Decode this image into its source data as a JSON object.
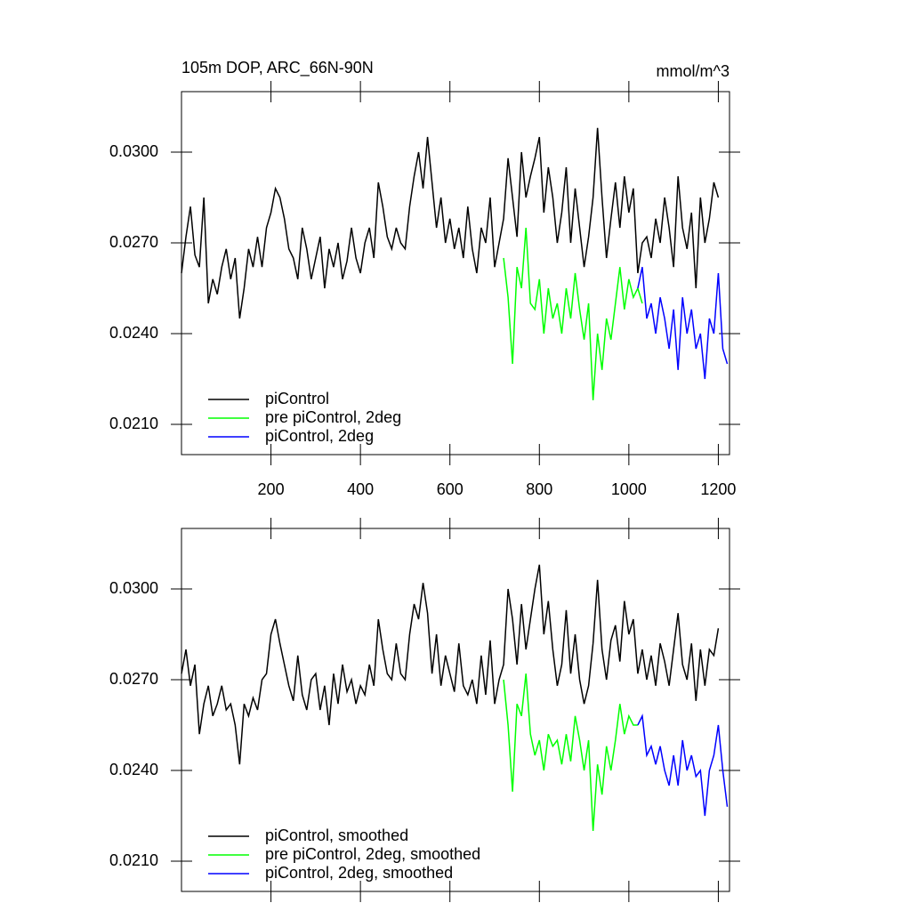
{
  "chart_data": [
    {
      "type": "line",
      "title": "105m DOP, ARC_66N-90N",
      "units": "mmol/m^3",
      "xlim": [
        0,
        1225
      ],
      "xticks": [
        200,
        400,
        600,
        800,
        1000,
        1200
      ],
      "ylim": [
        0.02,
        0.032
      ],
      "yticks": [
        {
          "value": 0.021,
          "label": "0.0210"
        },
        {
          "value": 0.024,
          "label": "0.0240"
        },
        {
          "value": 0.027,
          "label": "0.0270"
        },
        {
          "value": 0.03,
          "label": "0.0300"
        }
      ],
      "legend": "lower left",
      "series": [
        {
          "name": "piControl",
          "color": "#000000",
          "x": [
            0,
            10,
            20,
            30,
            40,
            50,
            60,
            70,
            80,
            90,
            100,
            110,
            120,
            130,
            140,
            150,
            160,
            170,
            180,
            190,
            200,
            210,
            220,
            230,
            240,
            250,
            260,
            270,
            280,
            290,
            300,
            310,
            320,
            330,
            340,
            350,
            360,
            370,
            380,
            390,
            400,
            410,
            420,
            430,
            440,
            450,
            460,
            470,
            480,
            490,
            500,
            510,
            520,
            530,
            540,
            550,
            560,
            570,
            580,
            590,
            600,
            610,
            620,
            630,
            640,
            650,
            660,
            670,
            680,
            690,
            700,
            710,
            720,
            730,
            740,
            750,
            760,
            770,
            780,
            790,
            800,
            810,
            820,
            830,
            840,
            850,
            860,
            870,
            880,
            890,
            900,
            910,
            920,
            930,
            940,
            950,
            960,
            970,
            980,
            990,
            1000,
            1010,
            1020,
            1030,
            1040,
            1050,
            1060,
            1070,
            1080,
            1090,
            1100,
            1110,
            1120,
            1130,
            1140,
            1150,
            1160,
            1170,
            1180,
            1190,
            1200
          ],
          "values": [
            0.026,
            0.0272,
            0.0282,
            0.0266,
            0.0262,
            0.0285,
            0.025,
            0.0258,
            0.0253,
            0.0262,
            0.0268,
            0.0258,
            0.0265,
            0.0245,
            0.0255,
            0.0268,
            0.0262,
            0.0272,
            0.0262,
            0.0275,
            0.028,
            0.0288,
            0.0285,
            0.0278,
            0.0268,
            0.0265,
            0.0258,
            0.0275,
            0.0268,
            0.0258,
            0.0265,
            0.0272,
            0.0255,
            0.0268,
            0.0262,
            0.027,
            0.0258,
            0.0264,
            0.0275,
            0.0265,
            0.026,
            0.027,
            0.0275,
            0.0265,
            0.029,
            0.0282,
            0.0272,
            0.0268,
            0.0275,
            0.027,
            0.0268,
            0.0282,
            0.0292,
            0.03,
            0.0288,
            0.0305,
            0.029,
            0.0275,
            0.0285,
            0.027,
            0.0278,
            0.0268,
            0.0275,
            0.0265,
            0.0282,
            0.0268,
            0.026,
            0.0275,
            0.027,
            0.0285,
            0.0262,
            0.027,
            0.0278,
            0.0298,
            0.0285,
            0.0272,
            0.03,
            0.0285,
            0.0292,
            0.0298,
            0.0305,
            0.028,
            0.0295,
            0.0285,
            0.027,
            0.028,
            0.0295,
            0.027,
            0.0288,
            0.0275,
            0.0262,
            0.0272,
            0.0285,
            0.0308,
            0.0285,
            0.0265,
            0.0278,
            0.029,
            0.0275,
            0.0292,
            0.028,
            0.0288,
            0.026,
            0.027,
            0.0272,
            0.0265,
            0.0278,
            0.027,
            0.0285,
            0.0275,
            0.0262,
            0.0292,
            0.0275,
            0.0268,
            0.028,
            0.0255,
            0.0285,
            0.027,
            0.0278,
            0.029,
            0.0285
          ]
        },
        {
          "name": "pre piControl, 2deg",
          "color": "#00ff00",
          "x": [
            720,
            730,
            740,
            750,
            760,
            770,
            780,
            790,
            800,
            810,
            820,
            830,
            840,
            850,
            860,
            870,
            880,
            890,
            900,
            910,
            920,
            930,
            940,
            950,
            960,
            970,
            980,
            990,
            1000,
            1010,
            1020,
            1030
          ],
          "values": [
            0.0265,
            0.0252,
            0.023,
            0.0262,
            0.0255,
            0.0275,
            0.025,
            0.0248,
            0.0258,
            0.024,
            0.0255,
            0.0245,
            0.025,
            0.024,
            0.0255,
            0.0245,
            0.026,
            0.0248,
            0.0238,
            0.025,
            0.0218,
            0.024,
            0.0228,
            0.0245,
            0.0238,
            0.025,
            0.0262,
            0.0248,
            0.0258,
            0.0252,
            0.0255,
            0.025
          ]
        },
        {
          "name": "piControl, 2deg",
          "color": "#0000ff",
          "x": [
            1020,
            1030,
            1040,
            1050,
            1060,
            1070,
            1080,
            1090,
            1100,
            1110,
            1120,
            1130,
            1140,
            1150,
            1160,
            1170,
            1180,
            1190,
            1200,
            1210,
            1220
          ],
          "values": [
            0.0255,
            0.0262,
            0.0245,
            0.025,
            0.024,
            0.0252,
            0.0245,
            0.0235,
            0.0248,
            0.0228,
            0.0252,
            0.024,
            0.0248,
            0.0235,
            0.024,
            0.0225,
            0.0245,
            0.024,
            0.026,
            0.0235,
            0.023
          ]
        }
      ]
    },
    {
      "type": "line",
      "xlim": [
        0,
        1225
      ],
      "xticks": [
        200,
        400,
        600,
        800,
        1000,
        1200
      ],
      "ylim": [
        0.02,
        0.032
      ],
      "yticks": [
        {
          "value": 0.021,
          "label": "0.0210"
        },
        {
          "value": 0.024,
          "label": "0.0240"
        },
        {
          "value": 0.027,
          "label": "0.0270"
        },
        {
          "value": 0.03,
          "label": "0.0300"
        }
      ],
      "legend": "lower left",
      "series": [
        {
          "name": "piControl, smoothed",
          "color": "#000000",
          "x": [
            0,
            10,
            20,
            30,
            40,
            50,
            60,
            70,
            80,
            90,
            100,
            110,
            120,
            130,
            140,
            150,
            160,
            170,
            180,
            190,
            200,
            210,
            220,
            230,
            240,
            250,
            260,
            270,
            280,
            290,
            300,
            310,
            320,
            330,
            340,
            350,
            360,
            370,
            380,
            390,
            400,
            410,
            420,
            430,
            440,
            450,
            460,
            470,
            480,
            490,
            500,
            510,
            520,
            530,
            540,
            550,
            560,
            570,
            580,
            590,
            600,
            610,
            620,
            630,
            640,
            650,
            660,
            670,
            680,
            690,
            700,
            710,
            720,
            730,
            740,
            750,
            760,
            770,
            780,
            790,
            800,
            810,
            820,
            830,
            840,
            850,
            860,
            870,
            880,
            890,
            900,
            910,
            920,
            930,
            940,
            950,
            960,
            970,
            980,
            990,
            1000,
            1010,
            1020,
            1030,
            1040,
            1050,
            1060,
            1070,
            1080,
            1090,
            1100,
            1110,
            1120,
            1130,
            1140,
            1150,
            1160,
            1170,
            1180,
            1190,
            1200
          ],
          "values": [
            0.0272,
            0.028,
            0.0268,
            0.0275,
            0.0252,
            0.0262,
            0.0268,
            0.0258,
            0.0262,
            0.0268,
            0.026,
            0.0262,
            0.0255,
            0.0242,
            0.0262,
            0.0258,
            0.0264,
            0.026,
            0.027,
            0.0272,
            0.0285,
            0.029,
            0.0282,
            0.0275,
            0.0268,
            0.0263,
            0.0278,
            0.0265,
            0.026,
            0.027,
            0.0272,
            0.026,
            0.0268,
            0.0255,
            0.0272,
            0.0262,
            0.0275,
            0.0266,
            0.027,
            0.0262,
            0.0268,
            0.0265,
            0.0275,
            0.0268,
            0.029,
            0.028,
            0.0272,
            0.027,
            0.0282,
            0.0272,
            0.027,
            0.0285,
            0.0295,
            0.029,
            0.0302,
            0.0292,
            0.0272,
            0.0285,
            0.0268,
            0.0278,
            0.0272,
            0.0266,
            0.0282,
            0.0268,
            0.0265,
            0.027,
            0.0262,
            0.0278,
            0.0265,
            0.0283,
            0.0262,
            0.027,
            0.0275,
            0.03,
            0.029,
            0.0275,
            0.0295,
            0.028,
            0.029,
            0.03,
            0.0308,
            0.0285,
            0.0296,
            0.028,
            0.0268,
            0.0275,
            0.0293,
            0.0272,
            0.0285,
            0.027,
            0.0262,
            0.0268,
            0.0282,
            0.0303,
            0.028,
            0.027,
            0.0283,
            0.0288,
            0.0276,
            0.0296,
            0.0285,
            0.029,
            0.0272,
            0.028,
            0.027,
            0.0278,
            0.0268,
            0.0282,
            0.0276,
            0.0268,
            0.028,
            0.0292,
            0.0275,
            0.027,
            0.0282,
            0.0263,
            0.028,
            0.0268,
            0.028,
            0.0278,
            0.0287
          ]
        },
        {
          "name": "pre piControl, 2deg, smoothed",
          "color": "#00ff00",
          "x": [
            720,
            730,
            740,
            750,
            760,
            770,
            780,
            790,
            800,
            810,
            820,
            830,
            840,
            850,
            860,
            870,
            880,
            890,
            900,
            910,
            920,
            930,
            940,
            950,
            960,
            970,
            980,
            990,
            1000,
            1010,
            1020
          ],
          "values": [
            0.027,
            0.0255,
            0.0233,
            0.0262,
            0.0258,
            0.0272,
            0.0252,
            0.0245,
            0.025,
            0.024,
            0.0252,
            0.0248,
            0.025,
            0.0242,
            0.0252,
            0.0243,
            0.0258,
            0.025,
            0.024,
            0.025,
            0.022,
            0.0242,
            0.0232,
            0.0248,
            0.024,
            0.025,
            0.0262,
            0.0252,
            0.0258,
            0.0255,
            0.0255
          ]
        },
        {
          "name": "piControl, 2deg, smoothed",
          "color": "#0000ff",
          "x": [
            1020,
            1030,
            1040,
            1050,
            1060,
            1070,
            1080,
            1090,
            1100,
            1110,
            1120,
            1130,
            1140,
            1150,
            1160,
            1170,
            1180,
            1190,
            1200,
            1210,
            1220
          ],
          "values": [
            0.0255,
            0.0258,
            0.0245,
            0.0248,
            0.0242,
            0.0248,
            0.024,
            0.0235,
            0.0245,
            0.0235,
            0.025,
            0.024,
            0.0245,
            0.0238,
            0.024,
            0.0225,
            0.024,
            0.0245,
            0.0255,
            0.024,
            0.0228
          ]
        }
      ]
    }
  ]
}
